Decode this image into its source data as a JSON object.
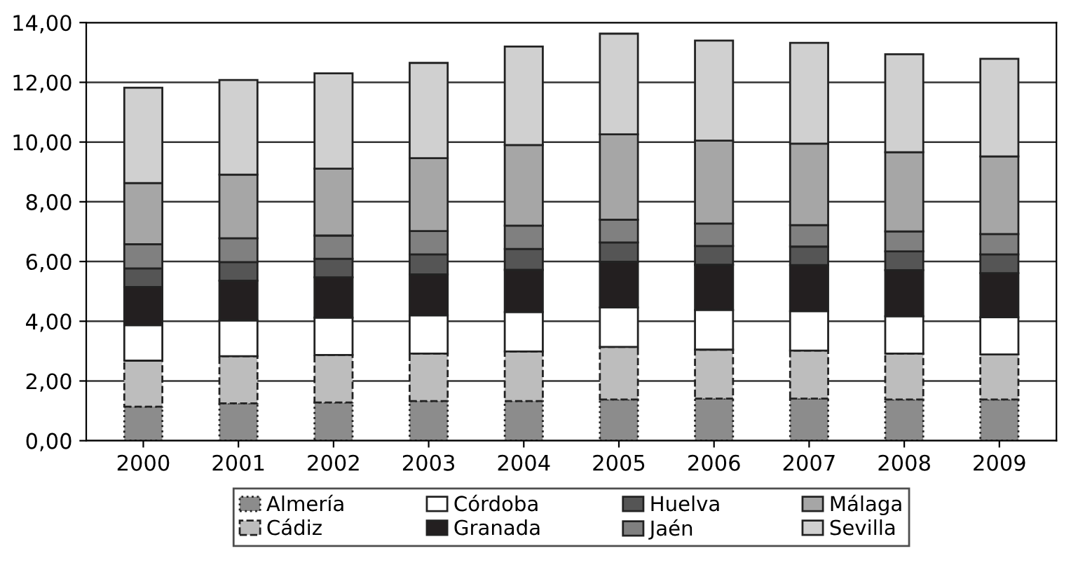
{
  "chart_data": {
    "type": "bar",
    "stacked": true,
    "categories": [
      "2000",
      "2001",
      "2002",
      "2003",
      "2004",
      "2005",
      "2006",
      "2007",
      "2008",
      "2009"
    ],
    "series": [
      {
        "name": "Almería",
        "color": "#8c8c8c",
        "line_style": "dotted",
        "values": [
          1.14,
          1.25,
          1.28,
          1.33,
          1.33,
          1.38,
          1.41,
          1.41,
          1.38,
          1.38
        ]
      },
      {
        "name": "Cádiz",
        "color": "#bdbdbd",
        "line_style": "dashed",
        "values": [
          1.54,
          1.58,
          1.59,
          1.59,
          1.66,
          1.76,
          1.64,
          1.61,
          1.54,
          1.51
        ]
      },
      {
        "name": "Córdoba",
        "color": "#ffffff",
        "values": [
          1.19,
          1.2,
          1.25,
          1.28,
          1.32,
          1.32,
          1.33,
          1.32,
          1.25,
          1.24
        ]
      },
      {
        "name": "Granada",
        "color": "#231f20",
        "values": [
          1.28,
          1.33,
          1.35,
          1.37,
          1.41,
          1.53,
          1.51,
          1.54,
          1.54,
          1.48
        ]
      },
      {
        "name": "Huelva",
        "color": "#555555",
        "values": [
          0.62,
          0.62,
          0.62,
          0.67,
          0.7,
          0.65,
          0.63,
          0.62,
          0.63,
          0.63
        ]
      },
      {
        "name": "Jaén",
        "color": "#808080",
        "values": [
          0.81,
          0.8,
          0.78,
          0.78,
          0.78,
          0.76,
          0.75,
          0.72,
          0.67,
          0.68
        ]
      },
      {
        "name": "Málaga",
        "color": "#a6a6a6",
        "values": [
          2.05,
          2.13,
          2.24,
          2.44,
          2.7,
          2.86,
          2.78,
          2.73,
          2.65,
          2.6
        ]
      },
      {
        "name": "Sevilla",
        "color": "#d0d0d0",
        "values": [
          3.19,
          3.17,
          3.19,
          3.19,
          3.3,
          3.37,
          3.35,
          3.37,
          3.28,
          3.27
        ]
      }
    ],
    "ylim": [
      0,
      14
    ],
    "yticks": [
      {
        "value": 0,
        "label": "0,00"
      },
      {
        "value": 2,
        "label": "2,00"
      },
      {
        "value": 4,
        "label": "4,00"
      },
      {
        "value": 6,
        "label": "6,00"
      },
      {
        "value": 8,
        "label": "8,00"
      },
      {
        "value": 10,
        "label": "10,00"
      },
      {
        "value": 12,
        "label": "12,00"
      },
      {
        "value": 14,
        "label": "14,00"
      }
    ],
    "grid": "y",
    "legend": "bottom"
  }
}
